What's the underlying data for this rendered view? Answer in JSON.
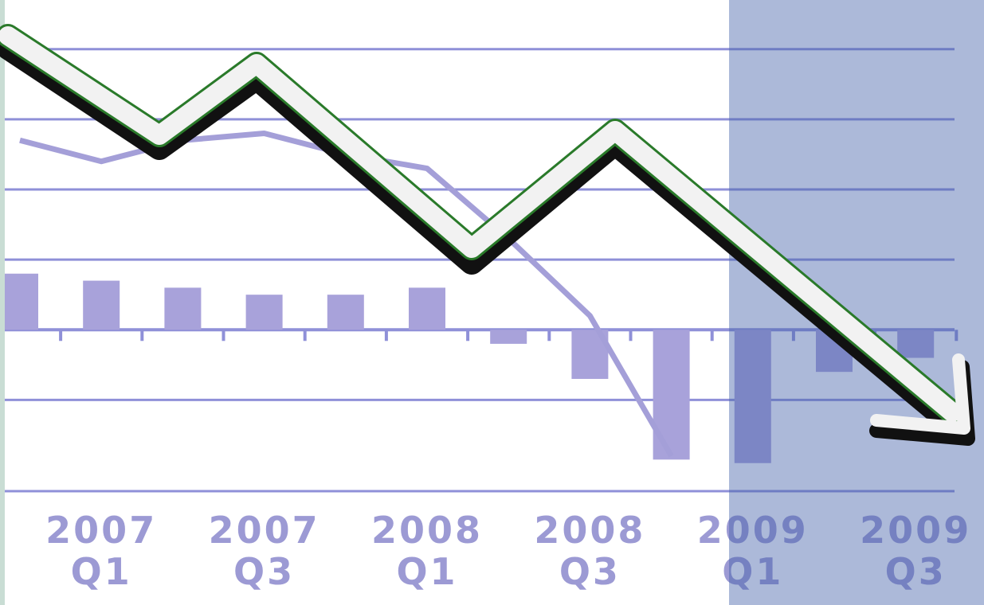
{
  "chart_data": {
    "type": "bar",
    "categories": [
      null,
      "2007 Q1",
      null,
      "2007 Q3",
      null,
      "2008 Q1",
      null,
      "2008 Q3",
      null,
      "2009 Q1",
      null,
      "2009 Q3"
    ],
    "series": [
      {
        "type": "bar",
        "color": "#a8a2da",
        "values": [
          0.8,
          0.7,
          0.6,
          0.5,
          0.5,
          0.6,
          -0.2,
          -0.7,
          -1.85,
          -1.9,
          -0.6,
          -0.4
        ]
      },
      {
        "type": "line",
        "color": "#a49fd8",
        "values": [
          2.7,
          2.4,
          2.7,
          2.8,
          2.5,
          2.3,
          1.3,
          0.2,
          -1.8,
          null,
          null,
          null
        ]
      }
    ],
    "ylim": [
      -2.3,
      4.7
    ],
    "yticks": [
      -1,
      0,
      1,
      2,
      3,
      4
    ],
    "grid": true
  }
}
